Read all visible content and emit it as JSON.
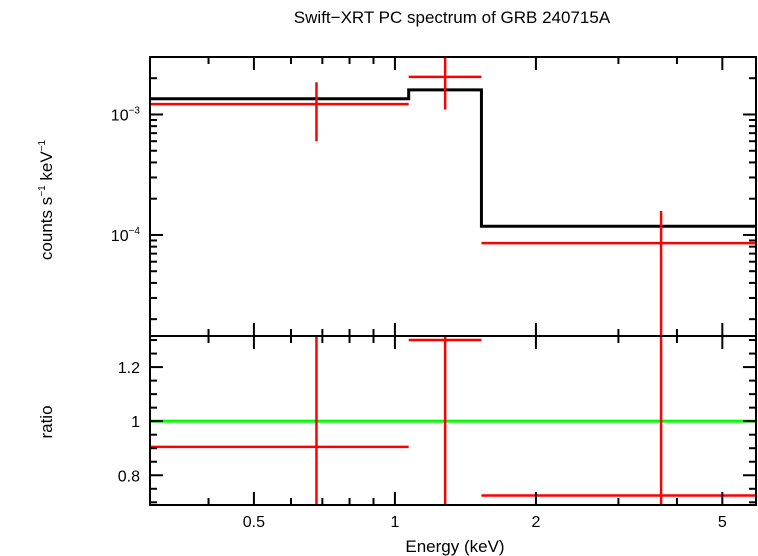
{
  "chart_data": {
    "type": "scatter",
    "title": "Swift−XRT PC spectrum of GRB 240715A",
    "xlabel": "Energy (keV)",
    "colors": {
      "data": "#ff0000",
      "model": "#000000",
      "unity": "#00ff00",
      "axes": "#000000"
    },
    "xaxis": {
      "scale": "log",
      "xlim": [
        0.3,
        5.9
      ],
      "major_ticks": [
        {
          "value": 0.5,
          "label": "0.5"
        },
        {
          "value": 1,
          "label": "1"
        },
        {
          "value": 2,
          "label": "2"
        },
        {
          "value": 5,
          "label": "5"
        }
      ],
      "minor_ticks": [
        0.3,
        0.4,
        0.6,
        0.7,
        0.8,
        0.9,
        3,
        4
      ]
    },
    "panels": [
      {
        "name": "spectrum",
        "ylabel_parts": {
          "main": "counts s",
          "exp1": "−1",
          "mid": " keV",
          "exp2": "−1"
        },
        "yscale": "log",
        "ylim": [
          1.45e-05,
          0.003
        ],
        "major_ticks": [
          {
            "value": 0.001,
            "base": "10",
            "exp": "−3"
          },
          {
            "value": 0.0001,
            "base": "10",
            "exp": "−4"
          }
        ],
        "minor_ticks": [
          2e-05,
          3e-05,
          4e-05,
          5e-05,
          6e-05,
          7e-05,
          8e-05,
          9e-05,
          0.0002,
          0.0003,
          0.0004,
          0.0005,
          0.0006,
          0.0007,
          0.0008,
          0.0009,
          0.002,
          0.003
        ],
        "data": [
          {
            "x": 0.68,
            "xlo": 0.3,
            "xhi": 1.07,
            "y": 0.00122,
            "ylo": 0.0006,
            "yhi": 0.00185
          },
          {
            "x": 1.28,
            "xlo": 1.07,
            "xhi": 1.53,
            "y": 0.00205,
            "ylo": 0.0011,
            "yhi": 0.0031
          },
          {
            "x": 3.7,
            "xlo": 1.53,
            "xhi": 5.9,
            "y": 8.55e-05,
            "ylo": 1.45e-05,
            "yhi": 0.000158
          }
        ],
        "model_steps": [
          {
            "xlo": 0.3,
            "xhi": 1.07,
            "y": 0.00135
          },
          {
            "xlo": 1.07,
            "xhi": 1.53,
            "y": 0.0016
          },
          {
            "xlo": 1.53,
            "xhi": 5.9,
            "y": 0.000118
          }
        ]
      },
      {
        "name": "ratio",
        "ylabel": "ratio",
        "yscale": "linear",
        "ylim": [
          0.69,
          1.315
        ],
        "major_ticks": [
          {
            "value": 0.8,
            "label": "0.8"
          },
          {
            "value": 1,
            "label": "1"
          },
          {
            "value": 1.2,
            "label": "1.2"
          }
        ],
        "minor_ticks": [
          0.7,
          0.75,
          0.85,
          0.9,
          0.95,
          1.05,
          1.1,
          1.15,
          1.25,
          1.3
        ],
        "unity_line": 1,
        "data": [
          {
            "x": 0.68,
            "xlo": 0.3,
            "xhi": 1.07,
            "y": 0.905,
            "ylo": 0.69,
            "yhi": 1.315
          },
          {
            "x": 1.28,
            "xlo": 1.07,
            "xhi": 1.53,
            "y": 1.3,
            "ylo": 0.69,
            "yhi": 1.315
          },
          {
            "x": 3.7,
            "xlo": 1.53,
            "xhi": 5.9,
            "y": 0.725,
            "ylo": 0.69,
            "yhi": 1.315
          }
        ]
      }
    ]
  }
}
